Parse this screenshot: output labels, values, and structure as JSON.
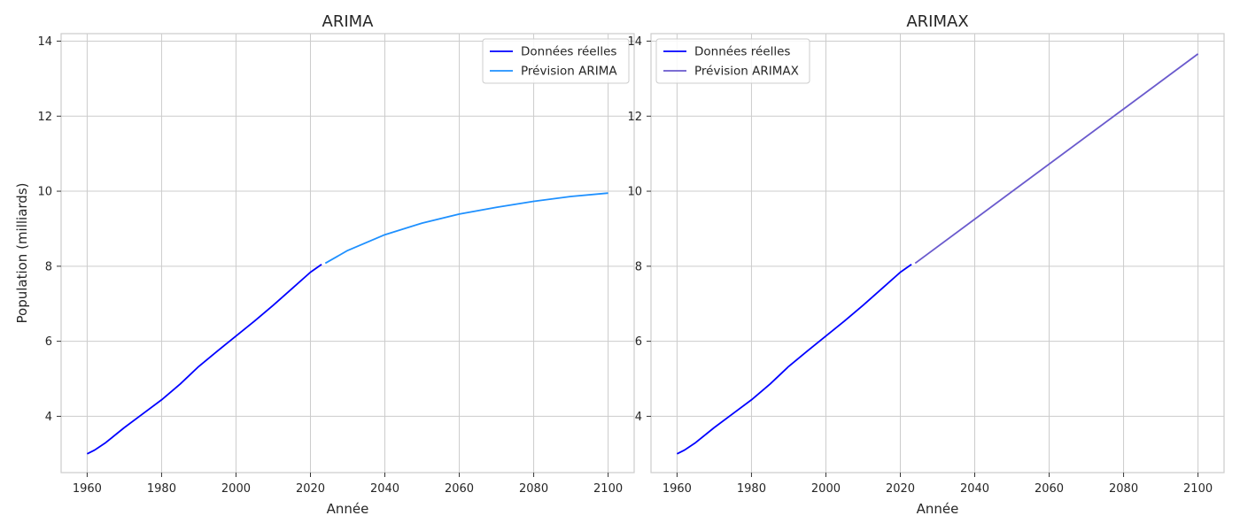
{
  "chart_data": [
    {
      "type": "line",
      "title": "ARIMA",
      "xlabel": "Année",
      "ylabel": "Population (milliards)",
      "xlim": [
        1953,
        2107
      ],
      "ylim": [
        2.5,
        14.2
      ],
      "xticks": [
        1960,
        1980,
        2000,
        2020,
        2040,
        2060,
        2080,
        2100
      ],
      "yticks": [
        4,
        6,
        8,
        10,
        12,
        14
      ],
      "grid": true,
      "legend_position": "upper right",
      "series": [
        {
          "name": "Données réelles",
          "color": "#0000ff",
          "x": [
            1960,
            1962,
            1965,
            1970,
            1975,
            1980,
            1985,
            1990,
            1995,
            2000,
            2005,
            2010,
            2015,
            2020,
            2023
          ],
          "y": [
            3.0,
            3.1,
            3.3,
            3.7,
            4.07,
            4.44,
            4.86,
            5.33,
            5.74,
            6.14,
            6.54,
            6.96,
            7.4,
            7.84,
            8.05
          ]
        },
        {
          "name": "Prévision ARIMA",
          "color": "#1e90ff",
          "x": [
            2024,
            2030,
            2040,
            2050,
            2060,
            2070,
            2080,
            2090,
            2100
          ],
          "y": [
            8.08,
            8.42,
            8.84,
            9.15,
            9.39,
            9.57,
            9.73,
            9.86,
            9.95
          ]
        }
      ]
    },
    {
      "type": "line",
      "title": "ARIMAX",
      "xlabel": "Année",
      "ylabel": "",
      "xlim": [
        1953,
        2107
      ],
      "ylim": [
        2.5,
        14.2
      ],
      "xticks": [
        1960,
        1980,
        2000,
        2020,
        2040,
        2060,
        2080,
        2100
      ],
      "yticks": [
        4,
        6,
        8,
        10,
        12,
        14
      ],
      "grid": true,
      "legend_position": "upper left",
      "series": [
        {
          "name": "Données réelles",
          "color": "#0000ff",
          "x": [
            1960,
            1962,
            1965,
            1970,
            1975,
            1980,
            1985,
            1990,
            1995,
            2000,
            2005,
            2010,
            2015,
            2020,
            2023
          ],
          "y": [
            3.0,
            3.1,
            3.3,
            3.7,
            4.07,
            4.44,
            4.86,
            5.33,
            5.74,
            6.14,
            6.54,
            6.96,
            7.4,
            7.84,
            8.05
          ]
        },
        {
          "name": "Prévision ARIMAX",
          "color": "#6a5acd",
          "x": [
            2024,
            2100
          ],
          "y": [
            8.08,
            13.66
          ]
        }
      ]
    }
  ]
}
